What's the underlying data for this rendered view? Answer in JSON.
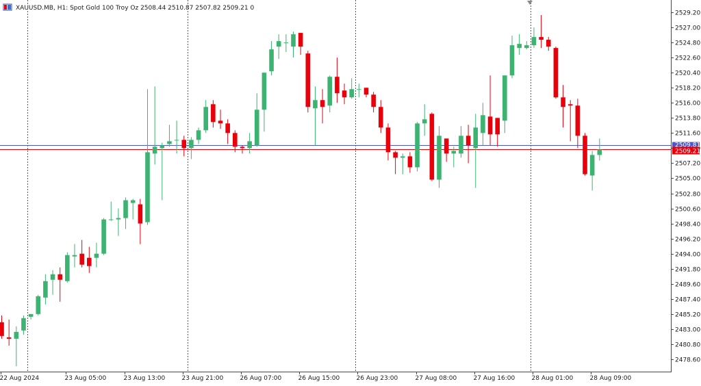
{
  "header": {
    "symbol": "XAUUSD.MB",
    "timeframe": "H1",
    "description": "Spot Gold 100 Troy Oz",
    "open": "2508.44",
    "high": "2510.87",
    "low": "2507.82",
    "close": "2509.21",
    "volume": "0",
    "icon": "chart-window-icon"
  },
  "colors": {
    "bull": "#3cb371",
    "bear": "#e8000b",
    "bid_line": "#e8000b",
    "ask_line": "#4a56c8",
    "separator": "#555555",
    "axis_line": "#444444"
  },
  "price_tags": {
    "ask": "2509.81",
    "bid": "2509.21"
  },
  "chart_data": {
    "type": "candlestick",
    "y_ticks": [
      "2529.20",
      "2527.00",
      "2524.80",
      "2522.60",
      "2520.40",
      "2518.20",
      "2516.00",
      "2513.80",
      "2511.60",
      "2509.40",
      "2507.20",
      "2505.00",
      "2502.80",
      "2500.60",
      "2498.40",
      "2496.20",
      "2494.00",
      "2491.80",
      "2489.60",
      "2487.40",
      "2485.20",
      "2483.00",
      "2480.80",
      "2478.60"
    ],
    "x_ticks": [
      {
        "label": "22 Aug 2024",
        "index": 0
      },
      {
        "label": "23 Aug 05:00",
        "index": 9
      },
      {
        "label": "23 Aug 13:00",
        "index": 17
      },
      {
        "label": "23 Aug 21:00",
        "index": 25
      },
      {
        "label": "26 Aug 07:00",
        "index": 33
      },
      {
        "label": "26 Aug 15:00",
        "index": 41
      },
      {
        "label": "26 Aug 23:00",
        "index": 49
      },
      {
        "label": "27 Aug 08:00",
        "index": 57
      },
      {
        "label": "27 Aug 16:00",
        "index": 65
      },
      {
        "label": "28 Aug 01:00",
        "index": 73
      },
      {
        "label": "28 Aug 09:00",
        "index": 81
      }
    ],
    "day_separators": [
      3,
      25,
      48,
      72
    ],
    "candles": [
      {
        "o": 2484.0,
        "h": 2485.0,
        "l": 2481.6,
        "c": 2482.0
      },
      {
        "o": 2481.8,
        "h": 2484.4,
        "l": 2480.6,
        "c": 2481.6
      },
      {
        "o": 2481.6,
        "h": 2483.4,
        "l": 2477.6,
        "c": 2482.6
      },
      {
        "o": 2482.8,
        "h": 2485.0,
        "l": 2482.2,
        "c": 2484.6
      },
      {
        "o": 2484.8,
        "h": 2485.2,
        "l": 2484.4,
        "c": 2485.2
      },
      {
        "o": 2485.2,
        "h": 2488.0,
        "l": 2485.0,
        "c": 2487.8
      },
      {
        "o": 2487.6,
        "h": 2491.0,
        "l": 2486.6,
        "c": 2490.0
      },
      {
        "o": 2490.2,
        "h": 2491.6,
        "l": 2488.0,
        "c": 2491.0
      },
      {
        "o": 2491.0,
        "h": 2492.0,
        "l": 2487.0,
        "c": 2490.2
      },
      {
        "o": 2490.0,
        "h": 2494.2,
        "l": 2489.8,
        "c": 2493.8
      },
      {
        "o": 2493.6,
        "h": 2495.4,
        "l": 2492.0,
        "c": 2493.8
      },
      {
        "o": 2494.0,
        "h": 2496.0,
        "l": 2492.0,
        "c": 2492.4
      },
      {
        "o": 2493.4,
        "h": 2495.0,
        "l": 2491.2,
        "c": 2492.2
      },
      {
        "o": 2493.4,
        "h": 2495.6,
        "l": 2492.0,
        "c": 2494.0
      },
      {
        "o": 2494.0,
        "h": 2499.2,
        "l": 2493.8,
        "c": 2499.0
      },
      {
        "o": 2499.0,
        "h": 2501.6,
        "l": 2498.8,
        "c": 2499.0
      },
      {
        "o": 2499.0,
        "h": 2500.6,
        "l": 2496.6,
        "c": 2499.2
      },
      {
        "o": 2499.2,
        "h": 2502.2,
        "l": 2497.6,
        "c": 2501.8
      },
      {
        "o": 2501.4,
        "h": 2502.0,
        "l": 2499.0,
        "c": 2501.8
      },
      {
        "o": 2501.2,
        "h": 2502.0,
        "l": 2495.4,
        "c": 2498.4
      },
      {
        "o": 2498.6,
        "h": 2518.0,
        "l": 2498.2,
        "c": 2508.8
      },
      {
        "o": 2508.6,
        "h": 2518.4,
        "l": 2507.0,
        "c": 2509.6
      },
      {
        "o": 2509.4,
        "h": 2510.2,
        "l": 2501.8,
        "c": 2509.8
      },
      {
        "o": 2510.0,
        "h": 2512.8,
        "l": 2509.6,
        "c": 2510.4
      },
      {
        "o": 2510.6,
        "h": 2513.4,
        "l": 2508.6,
        "c": 2510.6
      },
      {
        "o": 2510.6,
        "h": 2511.2,
        "l": 2508.2,
        "c": 2509.4
      },
      {
        "o": 2509.4,
        "h": 2511.0,
        "l": 2507.8,
        "c": 2510.6
      },
      {
        "o": 2510.6,
        "h": 2512.4,
        "l": 2510.0,
        "c": 2512.0
      },
      {
        "o": 2512.0,
        "h": 2516.4,
        "l": 2511.6,
        "c": 2515.4
      },
      {
        "o": 2515.8,
        "h": 2516.4,
        "l": 2512.4,
        "c": 2513.2
      },
      {
        "o": 2513.4,
        "h": 2515.0,
        "l": 2512.2,
        "c": 2513.0
      },
      {
        "o": 2513.0,
        "h": 2513.6,
        "l": 2510.0,
        "c": 2511.6
      },
      {
        "o": 2511.6,
        "h": 2512.0,
        "l": 2508.8,
        "c": 2509.6
      },
      {
        "o": 2509.6,
        "h": 2509.8,
        "l": 2508.6,
        "c": 2509.4
      },
      {
        "o": 2509.4,
        "h": 2511.6,
        "l": 2508.6,
        "c": 2510.4
      },
      {
        "o": 2509.8,
        "h": 2517.4,
        "l": 2509.6,
        "c": 2515.0
      },
      {
        "o": 2515.0,
        "h": 2520.4,
        "l": 2511.8,
        "c": 2520.4
      },
      {
        "o": 2520.6,
        "h": 2525.0,
        "l": 2520.0,
        "c": 2523.8
      },
      {
        "o": 2524.2,
        "h": 2526.0,
        "l": 2522.4,
        "c": 2525.0
      },
      {
        "o": 2524.8,
        "h": 2526.0,
        "l": 2523.4,
        "c": 2524.8
      },
      {
        "o": 2524.2,
        "h": 2526.4,
        "l": 2522.6,
        "c": 2526.0
      },
      {
        "o": 2526.2,
        "h": 2526.2,
        "l": 2523.0,
        "c": 2524.2
      },
      {
        "o": 2523.2,
        "h": 2523.6,
        "l": 2514.6,
        "c": 2515.4
      },
      {
        "o": 2515.2,
        "h": 2518.4,
        "l": 2509.8,
        "c": 2516.4
      },
      {
        "o": 2516.4,
        "h": 2518.0,
        "l": 2513.0,
        "c": 2515.4
      },
      {
        "o": 2515.6,
        "h": 2520.0,
        "l": 2514.6,
        "c": 2519.8
      },
      {
        "o": 2519.8,
        "h": 2522.6,
        "l": 2516.0,
        "c": 2517.4
      },
      {
        "o": 2517.8,
        "h": 2518.8,
        "l": 2515.8,
        "c": 2516.8
      },
      {
        "o": 2516.8,
        "h": 2519.6,
        "l": 2516.6,
        "c": 2518.0
      },
      {
        "o": 2518.0,
        "h": 2518.8,
        "l": 2516.8,
        "c": 2518.0
      },
      {
        "o": 2518.2,
        "h": 2518.2,
        "l": 2516.8,
        "c": 2517.2
      },
      {
        "o": 2517.2,
        "h": 2517.6,
        "l": 2514.6,
        "c": 2515.4
      },
      {
        "o": 2515.4,
        "h": 2516.4,
        "l": 2511.6,
        "c": 2512.4
      },
      {
        "o": 2512.4,
        "h": 2513.0,
        "l": 2507.6,
        "c": 2508.8
      },
      {
        "o": 2508.8,
        "h": 2509.0,
        "l": 2505.6,
        "c": 2508.0
      },
      {
        "o": 2508.0,
        "h": 2508.6,
        "l": 2505.6,
        "c": 2508.2
      },
      {
        "o": 2508.2,
        "h": 2508.8,
        "l": 2505.8,
        "c": 2506.6
      },
      {
        "o": 2506.6,
        "h": 2513.2,
        "l": 2506.0,
        "c": 2513.0
      },
      {
        "o": 2513.0,
        "h": 2515.8,
        "l": 2511.2,
        "c": 2513.6
      },
      {
        "o": 2514.4,
        "h": 2514.6,
        "l": 2504.6,
        "c": 2504.8
      },
      {
        "o": 2504.8,
        "h": 2512.6,
        "l": 2503.6,
        "c": 2511.2
      },
      {
        "o": 2510.8,
        "h": 2510.8,
        "l": 2507.4,
        "c": 2508.6
      },
      {
        "o": 2508.6,
        "h": 2509.6,
        "l": 2506.6,
        "c": 2509.0
      },
      {
        "o": 2508.6,
        "h": 2512.6,
        "l": 2508.0,
        "c": 2511.2
      },
      {
        "o": 2511.2,
        "h": 2512.8,
        "l": 2507.2,
        "c": 2509.8
      },
      {
        "o": 2509.4,
        "h": 2514.4,
        "l": 2503.6,
        "c": 2512.4
      },
      {
        "o": 2511.6,
        "h": 2516.0,
        "l": 2509.8,
        "c": 2514.2
      },
      {
        "o": 2514.0,
        "h": 2520.0,
        "l": 2509.8,
        "c": 2511.4
      },
      {
        "o": 2513.8,
        "h": 2513.8,
        "l": 2509.6,
        "c": 2511.4
      },
      {
        "o": 2513.4,
        "h": 2520.0,
        "l": 2511.6,
        "c": 2520.0
      },
      {
        "o": 2520.0,
        "h": 2525.8,
        "l": 2519.6,
        "c": 2524.4
      },
      {
        "o": 2524.0,
        "h": 2526.0,
        "l": 2523.0,
        "c": 2524.6
      },
      {
        "o": 2524.0,
        "h": 2525.0,
        "l": 2523.8,
        "c": 2524.4
      },
      {
        "o": 2524.4,
        "h": 2527.0,
        "l": 2524.0,
        "c": 2525.6
      },
      {
        "o": 2525.6,
        "h": 2528.8,
        "l": 2524.0,
        "c": 2525.2
      },
      {
        "o": 2525.2,
        "h": 2525.6,
        "l": 2523.6,
        "c": 2524.2
      },
      {
        "o": 2524.0,
        "h": 2524.2,
        "l": 2516.6,
        "c": 2516.8
      },
      {
        "o": 2516.8,
        "h": 2518.6,
        "l": 2512.4,
        "c": 2515.4
      },
      {
        "o": 2515.8,
        "h": 2516.4,
        "l": 2510.4,
        "c": 2515.6
      },
      {
        "o": 2515.6,
        "h": 2516.6,
        "l": 2509.4,
        "c": 2511.2
      },
      {
        "o": 2511.2,
        "h": 2511.6,
        "l": 2505.4,
        "c": 2505.6
      },
      {
        "o": 2505.4,
        "h": 2509.0,
        "l": 2503.2,
        "c": 2508.4
      },
      {
        "o": 2508.4,
        "h": 2510.8,
        "l": 2507.6,
        "c": 2509.2
      }
    ],
    "ylim": [
      2476.8,
      2531.0
    ],
    "bid": 2509.21,
    "ask": 2509.81,
    "legend": "none",
    "grid": false
  }
}
